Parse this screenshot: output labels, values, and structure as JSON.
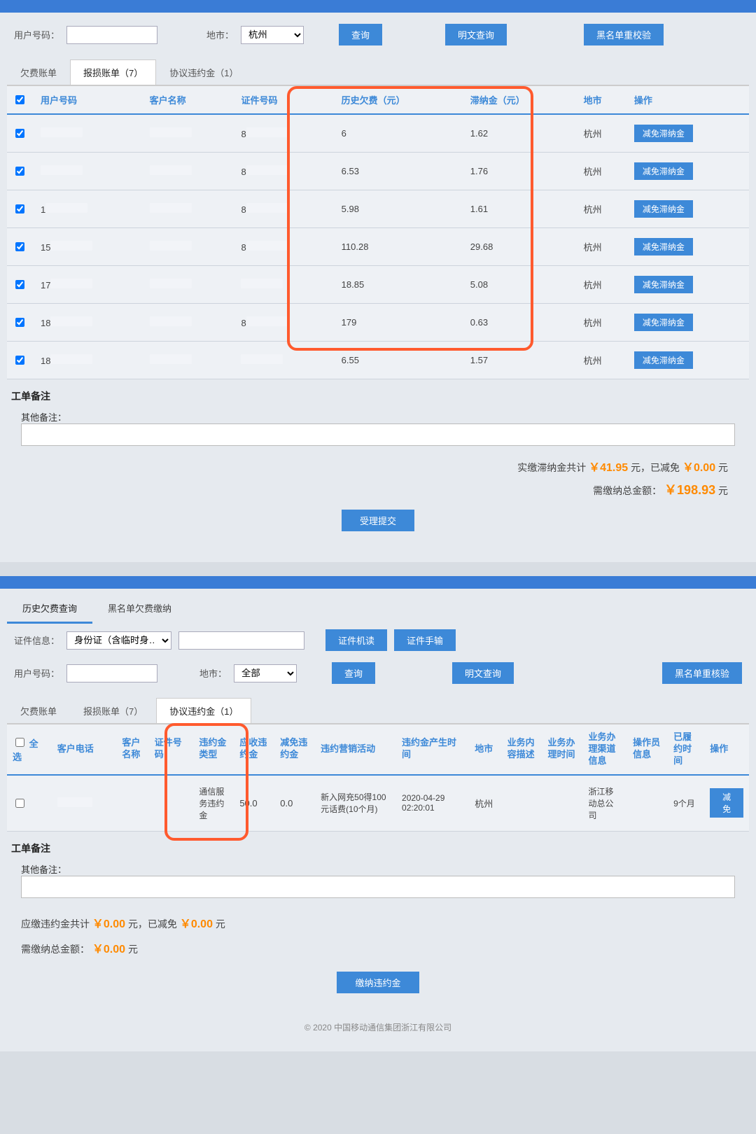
{
  "colors": {
    "primary": "#3d89d8",
    "accent_orange": "#ff8a00",
    "highlight_box": "#ff5a2e"
  },
  "screen1": {
    "filters": {
      "user_no_label": "用户号码：",
      "city_label": "地市：",
      "city_value": "杭州",
      "btn_query": "查询",
      "btn_plain_query": "明文查询",
      "btn_blacklist_check": "黑名单重校验"
    },
    "tabs": {
      "t1": "欠费账单",
      "t2": "报损账单（7）",
      "t3": "协议违约金（1）"
    },
    "headers": {
      "user_no": "用户号码",
      "cust_name": "客户名称",
      "cert_no": "证件号码",
      "hist_owe": "历史欠费（元）",
      "late_fee": "滞纳金（元）",
      "city": "地市",
      "action": "操作"
    },
    "rows": [
      {
        "user_no": "",
        "cert_prefix": "8",
        "hist": "6",
        "late": "1.62",
        "city": "杭州",
        "btn": "减免滞纳金"
      },
      {
        "user_no": "",
        "cert_prefix": "8",
        "hist": "6.53",
        "late": "1.76",
        "city": "杭州",
        "btn": "减免滞纳金"
      },
      {
        "user_no": "1",
        "cert_prefix": "8",
        "hist": "5.98",
        "late": "1.61",
        "city": "杭州",
        "btn": "减免滞纳金"
      },
      {
        "user_no": "15",
        "cert_prefix": "8",
        "hist": "110.28",
        "late": "29.68",
        "city": "杭州",
        "btn": "减免滞纳金"
      },
      {
        "user_no": "17",
        "cert_prefix": "",
        "hist": "18.85",
        "late": "5.08",
        "city": "杭州",
        "btn": "减免滞纳金"
      },
      {
        "user_no": "18",
        "cert_prefix": "8",
        "hist": "179",
        "late": "0.63",
        "city": "杭州",
        "btn": "减免滞纳金"
      },
      {
        "user_no": "18",
        "cert_prefix": "",
        "hist": "6.55",
        "late": "1.57",
        "city": "杭州",
        "btn": "减免滞纳金"
      }
    ],
    "remark_section_title": "工单备注",
    "remark_label": "其他备注：",
    "totals": {
      "line1_prefix": "实缴滞纳金共计",
      "line1_amount1": "￥41.95",
      "line1_mid": "元，已减免",
      "line1_amount2": "￥0.00",
      "line1_suffix": "元",
      "line2_prefix": "需缴纳总金额：",
      "line2_amount": "￥198.93",
      "line2_suffix": "元"
    },
    "submit_btn": "受理提交"
  },
  "screen2": {
    "page_tabs": {
      "t1": "历史欠费查询",
      "t2": "黑名单欠费缴纳"
    },
    "filters": {
      "cert_label": "证件信息：",
      "cert_type": "身份证（含临时身…",
      "btn_cert_read": "证件机读",
      "btn_cert_manual": "证件手输",
      "user_no_label": "用户号码：",
      "city_label": "地市：",
      "city_value": "全部",
      "btn_query": "查询",
      "btn_plain_query": "明文查询",
      "btn_blacklist_check": "黑名单重核验"
    },
    "tabs": {
      "t1": "欠费账单",
      "t2": "报损账单（7）",
      "t3": "协议违约金（1）"
    },
    "headers": {
      "select_all": "全选",
      "cust_phone": "客户电话",
      "cust_name": "客户名称",
      "cert_no": "证件号码",
      "penalty_type": "违约金类型",
      "due_penalty": "应收违约金",
      "waived": "减免违约金",
      "activity": "违约营销活动",
      "gen_time": "违约金产生时间",
      "city": "地市",
      "biz_desc": "业务内容描述",
      "biz_time": "业务办理时间",
      "biz_channel": "业务办理渠道信息",
      "operator": "操作员信息",
      "fulfilled": "已履约时间",
      "action": "操作"
    },
    "rows": [
      {
        "penalty_type": "通信服务违约金",
        "due_penalty": "50.0",
        "waived": "0.0",
        "activity": "新入网充50得100元话费(10个月)",
        "gen_time": "2020-04-29 02:20:01",
        "city": "杭州",
        "biz_channel": "浙江移动总公司",
        "fulfilled": "9个月",
        "btn": "减免"
      }
    ],
    "remark_section_title": "工单备注",
    "remark_label": "其他备注：",
    "totals": {
      "line1_prefix": "应缴违约金共计",
      "line1_amount1": "￥0.00",
      "line1_mid": "元，已减免",
      "line1_amount2": "￥0.00",
      "line1_suffix": "元",
      "line2_prefix": "需缴纳总金额：",
      "line2_amount": "￥0.00",
      "line2_suffix": "元"
    },
    "submit_btn": "缴纳违约金",
    "copyright": "© 2020 中国移动通信集团浙江有限公司"
  }
}
